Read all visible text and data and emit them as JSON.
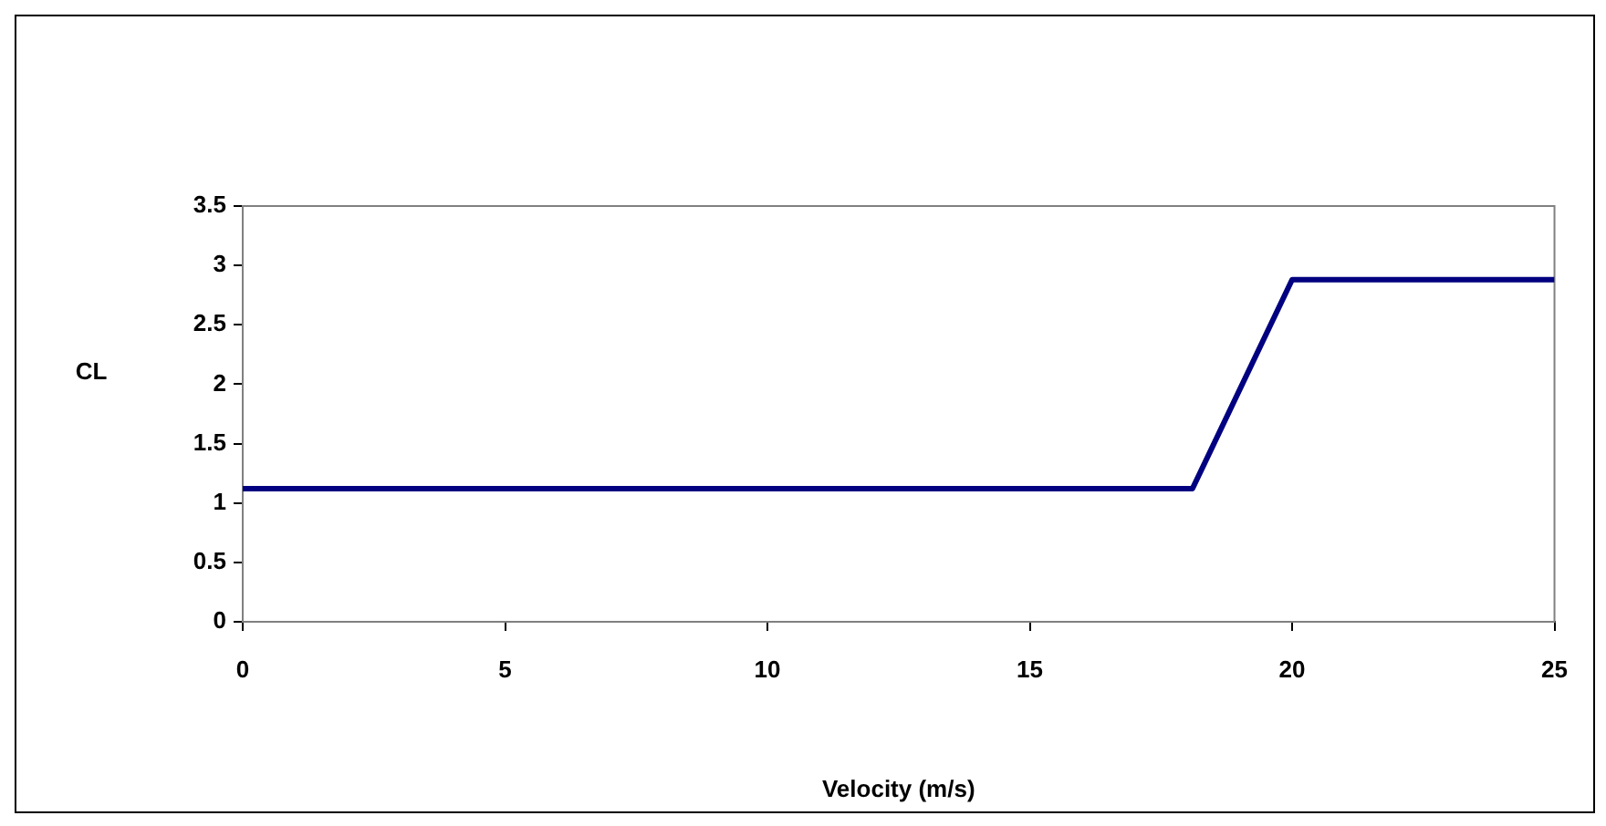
{
  "chart_data": {
    "type": "line",
    "xlabel": "Velocity (m/s)",
    "ylabel": "CL",
    "x": [
      0,
      18.1,
      20,
      25
    ],
    "series": [
      {
        "color": "#000080",
        "values": [
          1.12,
          1.12,
          2.88,
          2.88
        ]
      }
    ],
    "xlim": [
      0,
      25
    ],
    "xticks": [
      0,
      5,
      10,
      15,
      20,
      25
    ],
    "ylim": [
      0,
      3.5
    ],
    "yticks": [
      0,
      0.5,
      1,
      1.5,
      2,
      2.5,
      3,
      3.5
    ],
    "legend": false,
    "marker": "none",
    "line_style": "solid"
  }
}
